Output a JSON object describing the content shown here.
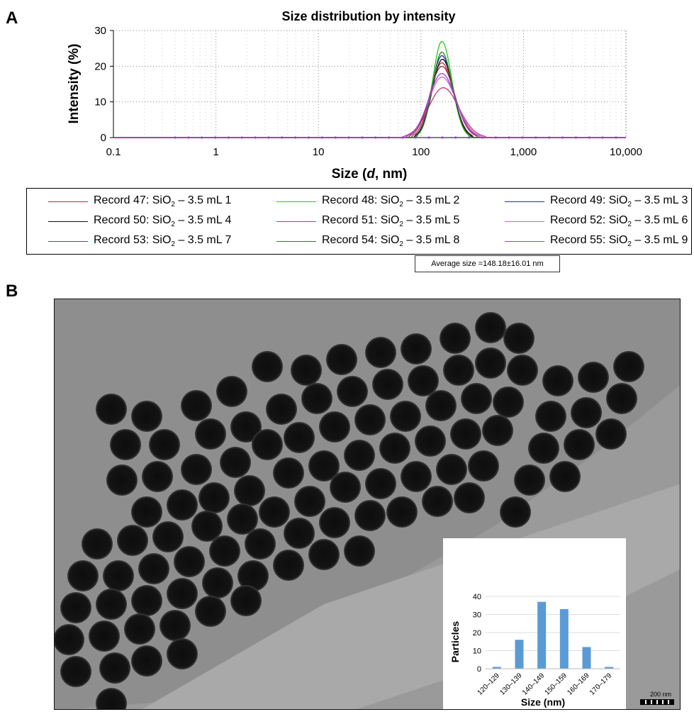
{
  "panels": {
    "a": "A",
    "b": "B"
  },
  "chart_data": [
    {
      "type": "line",
      "title": "Size distribution by intensity",
      "xlabel_prefix": "Size (",
      "xlabel_var": "d",
      "xlabel_suffix": ", nm)",
      "ylabel": "Intensity (%)",
      "xscale": "log",
      "xlim": [
        0.1,
        10000
      ],
      "ylim": [
        0,
        30
      ],
      "xticks": [
        0.1,
        1,
        10,
        100,
        1000,
        10000
      ],
      "xtick_labels": [
        "0.1",
        "1",
        "10",
        "100",
        "1,000",
        "10,000"
      ],
      "yticks": [
        0,
        10,
        20,
        30
      ],
      "ytick_labels": [
        "0",
        "10",
        "20",
        "30"
      ],
      "grid": true,
      "legend_position": "bottom",
      "series": [
        {
          "name": "Record 47: SiO",
          "sub": "2",
          "tail": " – 3.5 mL 1",
          "color": "#cc2244",
          "peak_x": 160,
          "peak_y": 21,
          "start_x": 80,
          "end_x": 330
        },
        {
          "name": "Record 48: SiO",
          "sub": "2",
          "tail": " – 3.5 mL 2",
          "color": "#22cc22",
          "peak_x": 160,
          "peak_y": 27,
          "start_x": 90,
          "end_x": 300
        },
        {
          "name": "Record 49: SiO",
          "sub": "2",
          "tail": " – 3.5 mL 3",
          "color": "#2233aa",
          "peak_x": 160,
          "peak_y": 23,
          "start_x": 85,
          "end_x": 320
        },
        {
          "name": "Record 50: SiO",
          "sub": "2",
          "tail": " – 3.5 mL 4",
          "color": "#111111",
          "peak_x": 162,
          "peak_y": 22,
          "start_x": 85,
          "end_x": 320
        },
        {
          "name": "Record 51: SiO",
          "sub": "2",
          "tail": " – 3.5 mL 5",
          "color": "#cc3377",
          "peak_x": 165,
          "peak_y": 14,
          "start_x": 65,
          "end_x": 440
        },
        {
          "name": "Record 52: SiO",
          "sub": "2",
          "tail": " – 3.5 mL 6",
          "color": "#cc66cc",
          "peak_x": 160,
          "peak_y": 17,
          "start_x": 70,
          "end_x": 400
        },
        {
          "name": "Record 53: SiO",
          "sub": "2",
          "tail": " – 3.5 mL 7",
          "color": "#993355",
          "peak_x": 160,
          "peak_y": 20,
          "start_x": 75,
          "end_x": 360
        },
        {
          "name": "Record 54: SiO",
          "sub": "2",
          "tail": " – 3.5 mL 8",
          "color": "#337733",
          "peak_x": 160,
          "peak_y": 24,
          "start_x": 88,
          "end_x": 310
        },
        {
          "name": "Record 55: SiO",
          "sub": "2",
          "tail": " – 3.5 mL 9",
          "color": "#9944cc",
          "peak_x": 160,
          "peak_y": 18,
          "start_x": 70,
          "end_x": 380
        }
      ]
    },
    {
      "type": "bar",
      "title": "Average size =148.18±16.01 nm",
      "categories": [
        "120–129",
        "130–139",
        "140–149",
        "150–159",
        "160–169",
        "170–179"
      ],
      "values": [
        1,
        16,
        37,
        33,
        12,
        1
      ],
      "xlabel": "Size (nm)",
      "ylabel": "Particles",
      "ylim": [
        0,
        40
      ],
      "yticks": [
        0,
        10,
        20,
        30,
        40
      ],
      "ytick_labels": [
        "0",
        "10",
        "20",
        "30",
        "40"
      ],
      "color": "#5b9bd5"
    }
  ],
  "tem": {
    "scale_label": "200 nm"
  }
}
